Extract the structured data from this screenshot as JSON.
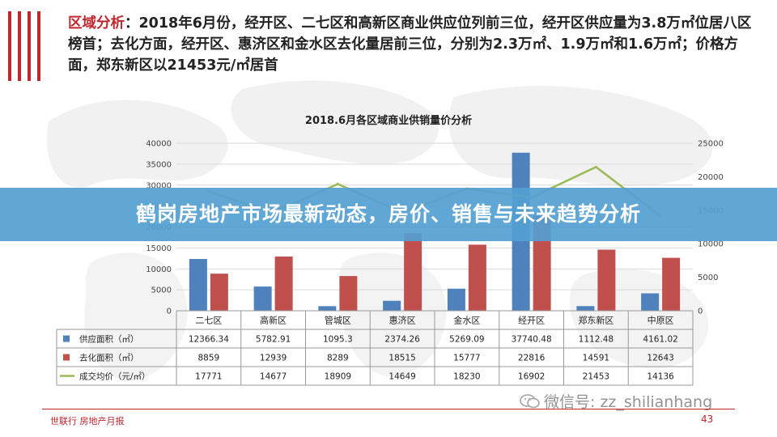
{
  "headline": {
    "label": "区域分析",
    "text": "：2018年6月份，经开区、二七区和高新区商业供应位列前三位，经开区供应量为3.8万㎡位居八区榜首；去化方面，经开区、惠济区和金水区去化量居前三位，分别为2.3万㎡、1.9万㎡和1.6万㎡；价格方面，郑东新区以21453元/㎡居首"
  },
  "banner": {
    "text": "鹤岗房地产市场最新动态，房价、销售与未来趋势分析"
  },
  "watermark": {
    "text": "微信号: zz_shilianhang"
  },
  "footer": {
    "logo": "世联行 房地产月报",
    "page": "43"
  },
  "colors": {
    "supply": "#4f81bd",
    "sales": "#c0504d",
    "price": "#9bbb59",
    "accent": "#c0262d",
    "banner": "#54a0d2"
  },
  "chart_data": {
    "type": "bar",
    "title": "2018.6月各区域商业供销量价分析",
    "categories": [
      "二七区",
      "高新区",
      "管城区",
      "惠济区",
      "金水区",
      "经开区",
      "郑东新区",
      "中原区"
    ],
    "series": [
      {
        "name": "供应面积（㎡）",
        "kind": "bar",
        "axis": "left",
        "values": [
          12366.34,
          5782.91,
          1095.3,
          2374.26,
          5269.09,
          37740.48,
          1112.48,
          4161.02
        ],
        "labels": [
          "12366.34",
          "5782.91",
          "1095.3",
          "2374.26",
          "5269.09",
          "37740.48",
          "1112.48",
          "4161.02"
        ]
      },
      {
        "name": "去化面积（㎡）",
        "kind": "bar",
        "axis": "left",
        "values": [
          8859,
          12939,
          8289,
          18515,
          15777,
          22816,
          14591,
          12643
        ],
        "labels": [
          "8859",
          "12939",
          "8289",
          "18515",
          "15777",
          "22816",
          "14591",
          "12643"
        ]
      },
      {
        "name": "成交均价（元/㎡）",
        "kind": "line",
        "axis": "right",
        "values": [
          17771,
          14677,
          18909,
          14649,
          18230,
          16902,
          21453,
          14136
        ],
        "labels": [
          "17771",
          "14677",
          "18909",
          "14649",
          "18230",
          "16902",
          "21453",
          "14136"
        ]
      }
    ],
    "y_left": {
      "min": 0,
      "max": 40000,
      "ticks": [
        "0",
        "5000",
        "10000",
        "15000",
        "20000",
        "25000",
        "30000",
        "35000",
        "40000"
      ]
    },
    "y_right": {
      "min": 0,
      "max": 25000,
      "ticks": [
        "0",
        "5000",
        "10000",
        "15000",
        "20000",
        "25000"
      ]
    },
    "grid": true,
    "legend": "data-table-below"
  }
}
